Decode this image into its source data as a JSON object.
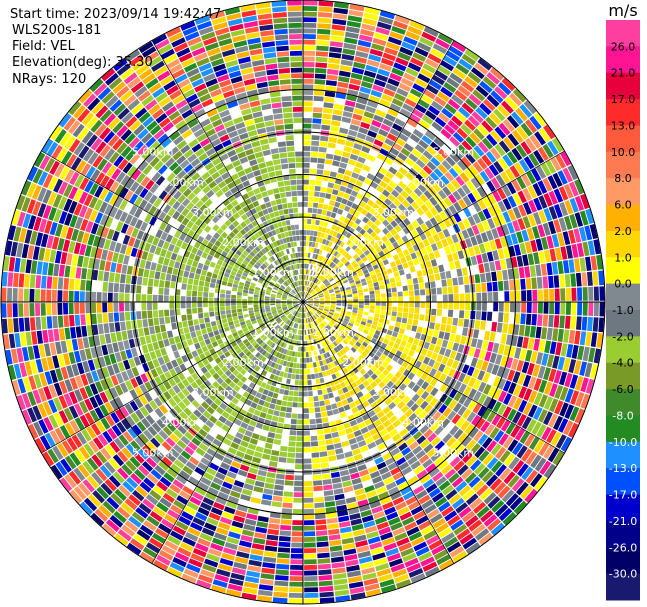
{
  "header": {
    "start_time": "Start time: 2023/09/14 19:42:47",
    "instrument": "WLS200s-181",
    "field": "Field: VEL",
    "elevation": "Elevation(deg): 35.30",
    "nrays": "NRays: 120"
  },
  "colorbar": {
    "unit": "m/s",
    "tick_labels": [
      "26.0",
      "21.0",
      "17.0",
      "13.0",
      "10.0",
      "8.0",
      "6.0",
      "2.0",
      "1.0",
      "0.0",
      "-1.0",
      "-2.0",
      "-4.0",
      "-6.0",
      "-8.0",
      "-10.0",
      "-13.0",
      "-17.0",
      "-21.0",
      "-26.0",
      "-30.0"
    ],
    "colors": [
      "#ff3fa0",
      "#ff1493",
      "#e8003c",
      "#ff2a2a",
      "#ff5a3c",
      "#ff7a50",
      "#ff9a66",
      "#ffb000",
      "#ffd700",
      "#ffff00",
      "#808890",
      "#6e7880",
      "#9acd32",
      "#7a9a28",
      "#3f8a2a",
      "#228b22",
      "#1e90ff",
      "#0050ff",
      "#0000cd",
      "#00008b",
      "#000066",
      "#191970"
    ]
  },
  "chart_data": {
    "type": "heatmap",
    "title": "",
    "field": "VEL",
    "units": "m/s",
    "projection": "polar PPI",
    "n_rays": 120,
    "elevation_deg": 35.3,
    "range_ring_labels": [
      "1.00km",
      "2.00km",
      "3.00km",
      "4.00km",
      "5.00km"
    ],
    "range_rings_km": [
      1,
      2,
      3,
      4,
      5
    ],
    "value_range": [
      -30,
      30
    ],
    "pattern": "dipole: negative velocities (green) on west side, positive (yellow) on east side near center; noisy multicolor returns beyond ~3km"
  }
}
